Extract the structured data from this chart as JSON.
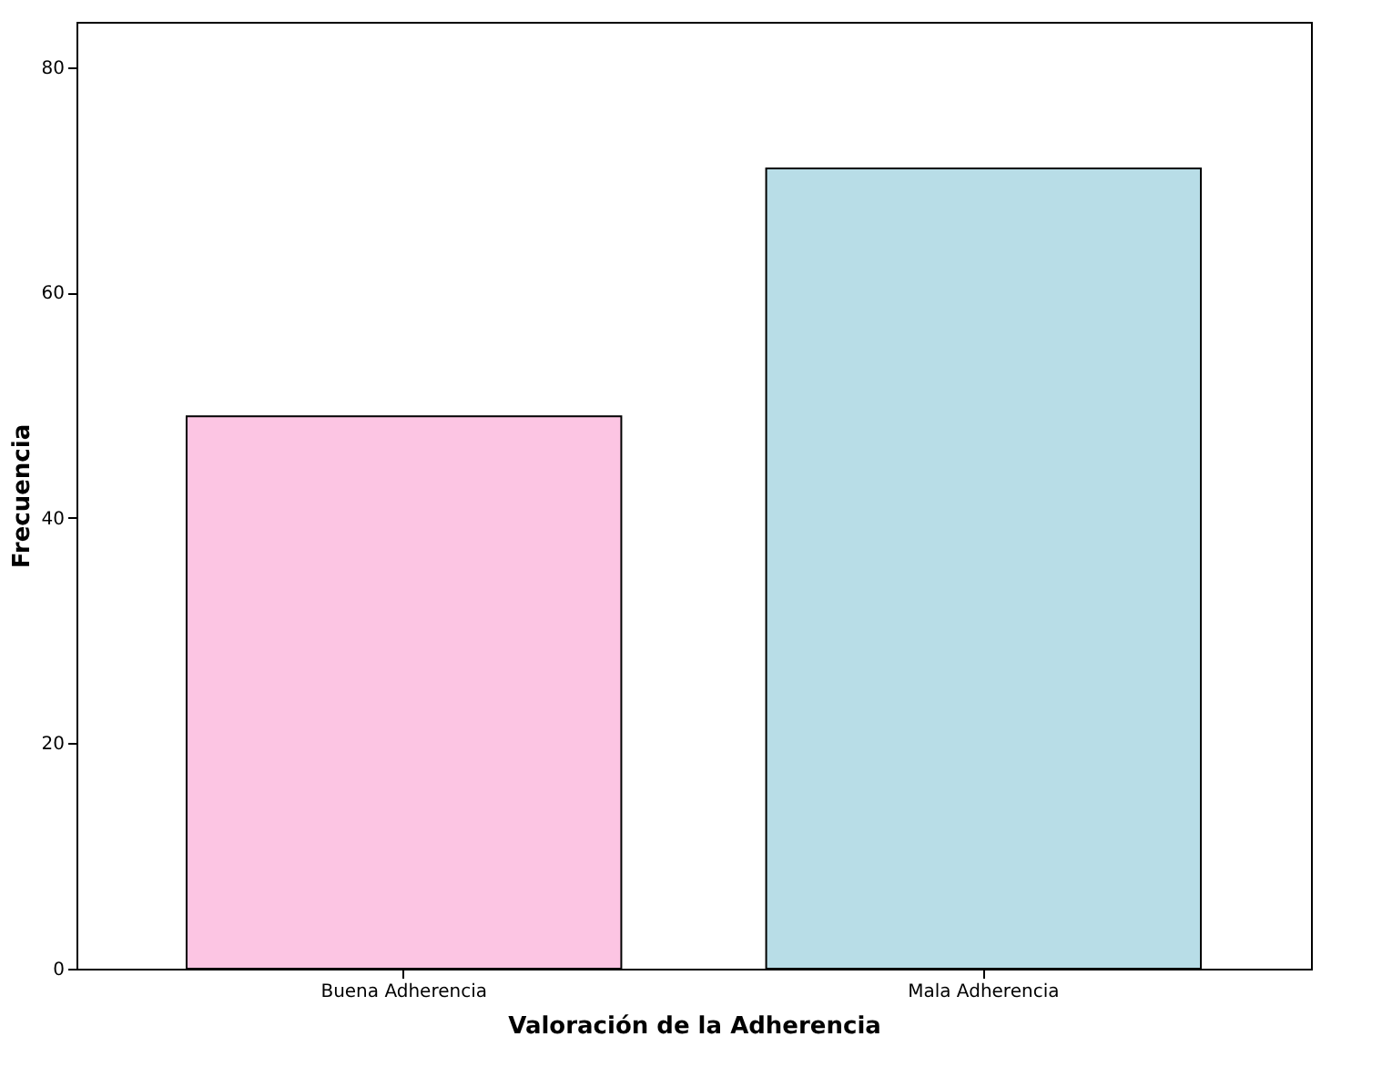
{
  "chart_data": {
    "type": "bar",
    "xlabel": "Valoración de la Adherencia",
    "ylabel": "Frecuencia",
    "categories": [
      "Buena Adherencia",
      "Mala Adherencia"
    ],
    "values": [
      49,
      71
    ],
    "colors": [
      "#fcc5e3",
      "#b8dde7"
    ],
    "ylim": [
      0,
      84
    ],
    "yticks": [
      0,
      20,
      40,
      60,
      80
    ],
    "grid": false
  }
}
